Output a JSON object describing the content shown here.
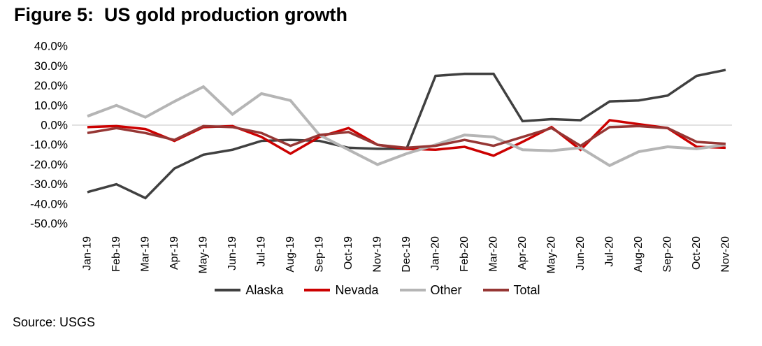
{
  "header": {
    "title": "Figure 5:  US gold production growth"
  },
  "source": {
    "label": "Source: USGS"
  },
  "chart_data": {
    "type": "line",
    "title": "Figure 5: US gold production growth",
    "xlabel": "",
    "ylabel": "",
    "ylim": [
      -50,
      40
    ],
    "grid": "zero-baseline-only",
    "legend_position": "bottom",
    "zero_line_color": "#d9d9d9",
    "ytick_labels": [
      "40.0%",
      "30.0%",
      "20.0%",
      "10.0%",
      "0.0%",
      "-10.0%",
      "-20.0%",
      "-30.0%",
      "-40.0%",
      "-50.0%"
    ],
    "categories": [
      "Jan-19",
      "Feb-19",
      "Mar-19",
      "Apr-19",
      "May-19",
      "Jun-19",
      "Jul-19",
      "Aug-19",
      "Sep-19",
      "Oct-19",
      "Nov-19",
      "Dec-19",
      "Jan-20",
      "Feb-20",
      "Mar-20",
      "Apr-20",
      "May-20",
      "Jun-20",
      "Jul-20",
      "Aug-20",
      "Sep-20",
      "Oct-20",
      "Nov-20"
    ],
    "unit": "percent",
    "series": [
      {
        "name": "Alaska",
        "color": "#404040",
        "values": [
          -34,
          -30,
          -37,
          -22,
          -15,
          -12.5,
          -8,
          -7.5,
          -8,
          -11.5,
          -12,
          -12,
          25,
          26,
          26,
          2,
          3,
          2.5,
          12,
          12.5,
          15,
          25,
          28
        ]
      },
      {
        "name": "Nevada",
        "color": "#cc0000",
        "values": [
          -1,
          -0.5,
          -2,
          -8,
          -1,
          -0.5,
          -6,
          -14.5,
          -6,
          -1.5,
          -10,
          -12,
          -12.5,
          -11,
          -15.5,
          -8.5,
          -1,
          -12.5,
          2.5,
          0.5,
          -1.5,
          -11,
          -11.5
        ]
      },
      {
        "name": "Other",
        "color": "#b5b5b5",
        "values": [
          4.5,
          10,
          4,
          12,
          19.5,
          5.5,
          16,
          12.5,
          -5,
          -12.5,
          -20,
          -14.5,
          -10,
          -5,
          -6,
          -12.5,
          -13,
          -11.5,
          -20.5,
          -13.5,
          -11,
          -12,
          -10
        ]
      },
      {
        "name": "Total",
        "color": "#963634",
        "values": [
          -4,
          -1.5,
          -4,
          -7.5,
          -0.5,
          -1,
          -4,
          -10.5,
          -5,
          -3.5,
          -10,
          -11.5,
          -10.5,
          -7.5,
          -10.5,
          -6,
          -1.5,
          -10.5,
          -1,
          -0.5,
          -1.5,
          -8.5,
          -9.5
        ]
      }
    ]
  }
}
